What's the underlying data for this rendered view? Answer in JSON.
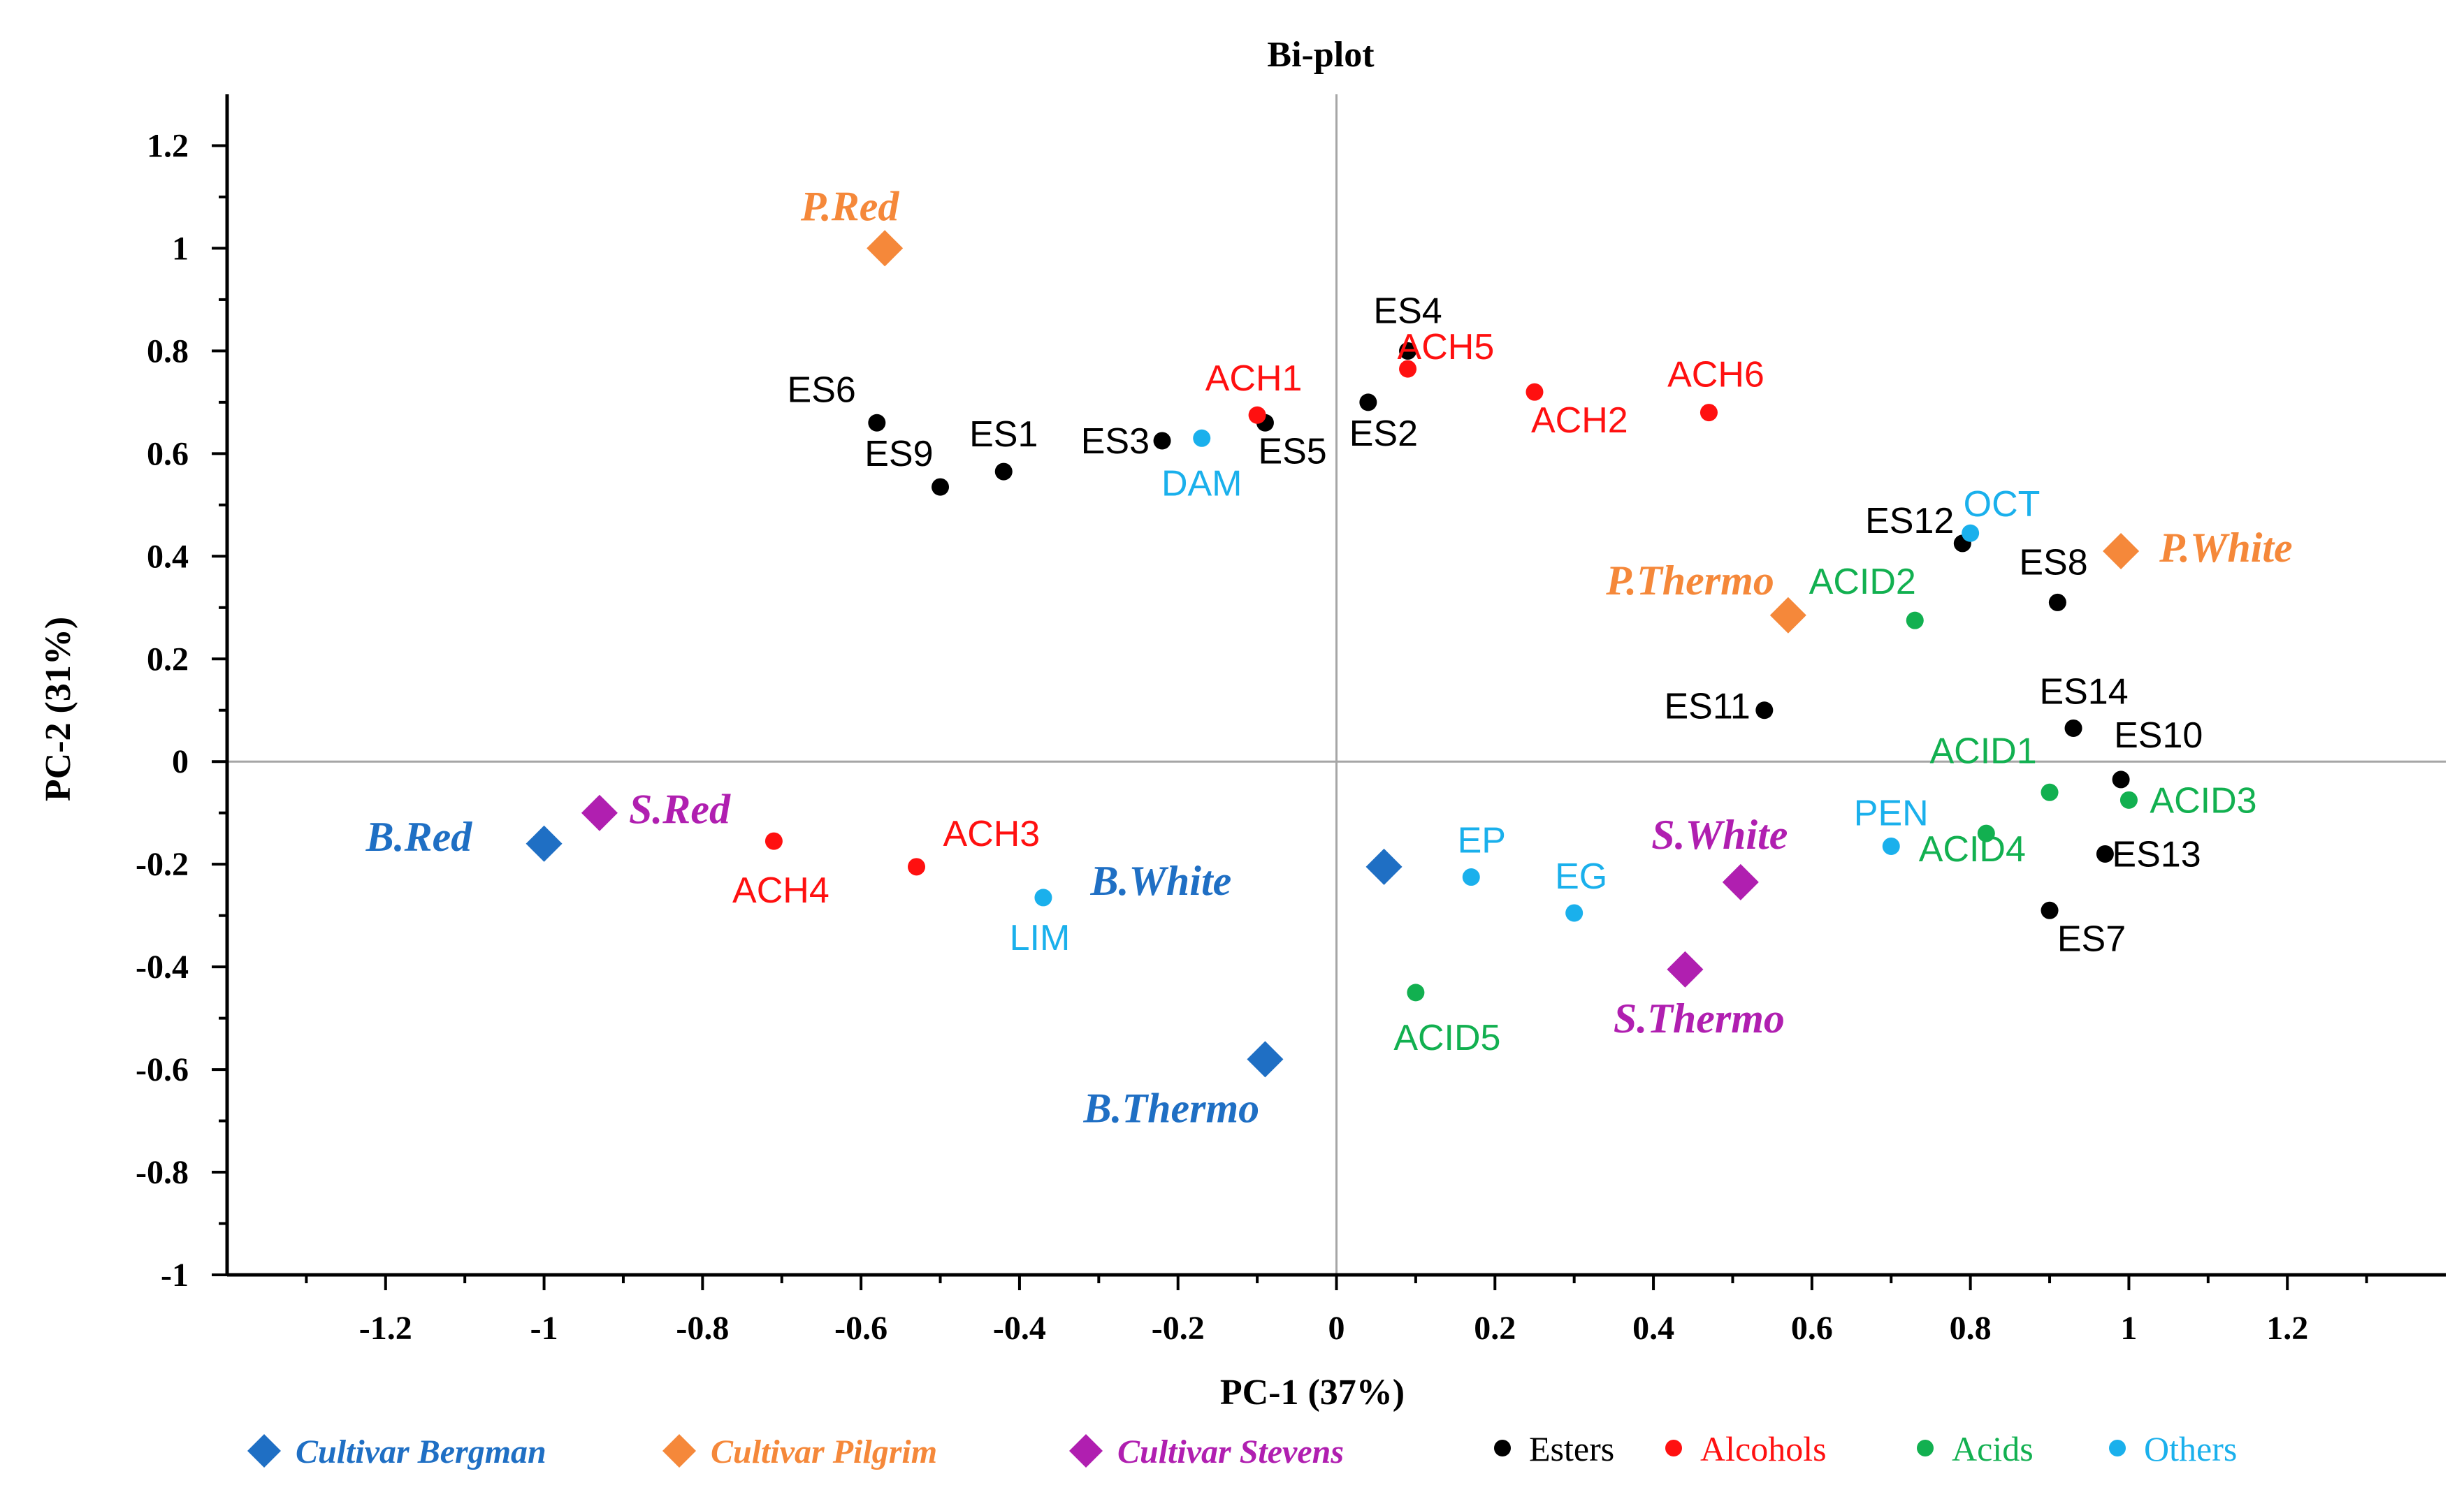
{
  "chart_data": {
    "type": "scatter",
    "title": "Bi-plot",
    "xlabel": "PC-1 (37%)",
    "ylabel": "PC-2 (31%)",
    "xlim": [
      -1.4,
      1.4
    ],
    "ylim": [
      -1.0,
      1.3
    ],
    "xticks": [
      -1.2,
      -1,
      -0.8,
      -0.6,
      -0.4,
      -0.2,
      0,
      0.2,
      0.4,
      0.6,
      0.8,
      1,
      1.2
    ],
    "xtick_labels": [
      "-1.2",
      "-1",
      "-0.8",
      "-0.6",
      "-0.4",
      "-0.2",
      "0",
      "0.2",
      "0.4",
      "0.6",
      "0.8",
      "1",
      "1.2"
    ],
    "yticks": [
      1.2,
      1,
      0.8,
      0.6,
      0.4,
      0.2,
      0,
      -0.2,
      -0.4,
      -0.6,
      -0.8,
      -1
    ],
    "ytick_labels": [
      "1.2",
      "1",
      "0.8",
      "0.6",
      "0.4",
      "0.2",
      "0",
      "-0.2",
      "-0.4",
      "-0.6",
      "-0.8",
      "-1"
    ],
    "grid": false,
    "colors": {
      "bergman": "#1f6fc4",
      "pilgrim": "#f5883a",
      "stevens": "#b01fb0",
      "esters": "#000000",
      "alcohols": "#ff1010",
      "acids": "#12b050",
      "others": "#1ab0ec"
    },
    "samples": [
      {
        "label": "B.Red",
        "x": -1.0,
        "y": -0.16,
        "group": "bergman"
      },
      {
        "label": "B.White",
        "x": 0.06,
        "y": -0.205,
        "group": "bergman"
      },
      {
        "label": "B.Thermo",
        "x": -0.09,
        "y": -0.58,
        "group": "bergman"
      },
      {
        "label": "P.Red",
        "x": -0.57,
        "y": 1.0,
        "group": "pilgrim"
      },
      {
        "label": "P.Thermo",
        "x": 0.57,
        "y": 0.285,
        "group": "pilgrim"
      },
      {
        "label": "P.White",
        "x": 0.99,
        "y": 0.41,
        "group": "pilgrim"
      },
      {
        "label": "S.Red",
        "x": -0.93,
        "y": -0.1,
        "group": "stevens"
      },
      {
        "label": "S.White",
        "x": 0.51,
        "y": -0.235,
        "group": "stevens"
      },
      {
        "label": "S.Thermo",
        "x": 0.44,
        "y": -0.405,
        "group": "stevens"
      }
    ],
    "variables": [
      {
        "label": "ES4",
        "x": 0.09,
        "y": 0.8,
        "group": "esters"
      },
      {
        "label": "ES6",
        "x": -0.58,
        "y": 0.66,
        "group": "esters"
      },
      {
        "label": "ES1",
        "x": -0.42,
        "y": 0.565,
        "group": "esters"
      },
      {
        "label": "ES9",
        "x": -0.5,
        "y": 0.535,
        "group": "esters"
      },
      {
        "label": "ES3",
        "x": -0.22,
        "y": 0.625,
        "group": "esters"
      },
      {
        "label": "ES5",
        "x": -0.09,
        "y": 0.66,
        "group": "esters"
      },
      {
        "label": "ES2",
        "x": 0.04,
        "y": 0.7,
        "group": "esters"
      },
      {
        "label": "ES12",
        "x": 0.79,
        "y": 0.425,
        "group": "esters"
      },
      {
        "label": "ES8",
        "x": 0.91,
        "y": 0.31,
        "group": "esters"
      },
      {
        "label": "ES11",
        "x": 0.54,
        "y": 0.1,
        "group": "esters"
      },
      {
        "label": "ES14",
        "x": 0.93,
        "y": 0.065,
        "group": "esters"
      },
      {
        "label": "ES10",
        "x": 0.99,
        "y": -0.035,
        "group": "esters"
      },
      {
        "label": "ES13",
        "x": 0.97,
        "y": -0.18,
        "group": "esters"
      },
      {
        "label": "ES7",
        "x": 0.9,
        "y": -0.29,
        "group": "esters"
      },
      {
        "label": "ACH1",
        "x": -0.1,
        "y": 0.675,
        "group": "alcohols"
      },
      {
        "label": "ACH5",
        "x": 0.09,
        "y": 0.765,
        "group": "alcohols"
      },
      {
        "label": "ACH2",
        "x": 0.25,
        "y": 0.72,
        "group": "alcohols"
      },
      {
        "label": "ACH6",
        "x": 0.47,
        "y": 0.68,
        "group": "alcohols"
      },
      {
        "label": "ACH3",
        "x": -0.53,
        "y": -0.205,
        "group": "alcohols"
      },
      {
        "label": "ACH4",
        "x": -0.71,
        "y": -0.155,
        "group": "alcohols"
      },
      {
        "label": "ACID2",
        "x": 0.73,
        "y": 0.275,
        "group": "acids"
      },
      {
        "label": "ACID1",
        "x": 0.9,
        "y": -0.06,
        "group": "acids"
      },
      {
        "label": "ACID3",
        "x": 1.0,
        "y": -0.075,
        "group": "acids"
      },
      {
        "label": "ACID4",
        "x": 0.82,
        "y": -0.14,
        "group": "acids"
      },
      {
        "label": "ACID5",
        "x": 0.1,
        "y": -0.45,
        "group": "acids"
      },
      {
        "label": "DAM",
        "x": -0.17,
        "y": 0.63,
        "group": "others"
      },
      {
        "label": "OCT",
        "x": 0.8,
        "y": 0.445,
        "group": "others"
      },
      {
        "label": "PEN",
        "x": 0.7,
        "y": -0.165,
        "group": "others"
      },
      {
        "label": "EP",
        "x": 0.17,
        "y": -0.225,
        "group": "others"
      },
      {
        "label": "EG",
        "x": 0.3,
        "y": -0.295,
        "group": "others"
      },
      {
        "label": "LIM",
        "x": -0.37,
        "y": -0.265,
        "group": "others"
      }
    ],
    "legend": [
      {
        "label": "Cultivar Bergman",
        "marker": "diamond",
        "group": "bergman"
      },
      {
        "label": "Cultivar Pilgrim",
        "marker": "diamond",
        "group": "pilgrim"
      },
      {
        "label": "Cultivar Stevens",
        "marker": "diamond",
        "group": "stevens"
      },
      {
        "label": "Esters",
        "marker": "dot",
        "group": "esters"
      },
      {
        "label": "Alcohols",
        "marker": "dot",
        "group": "alcohols"
      },
      {
        "label": "Acids",
        "marker": "dot",
        "group": "acids"
      },
      {
        "label": "Others",
        "marker": "dot",
        "group": "others"
      }
    ],
    "legend_position": "bottom"
  }
}
